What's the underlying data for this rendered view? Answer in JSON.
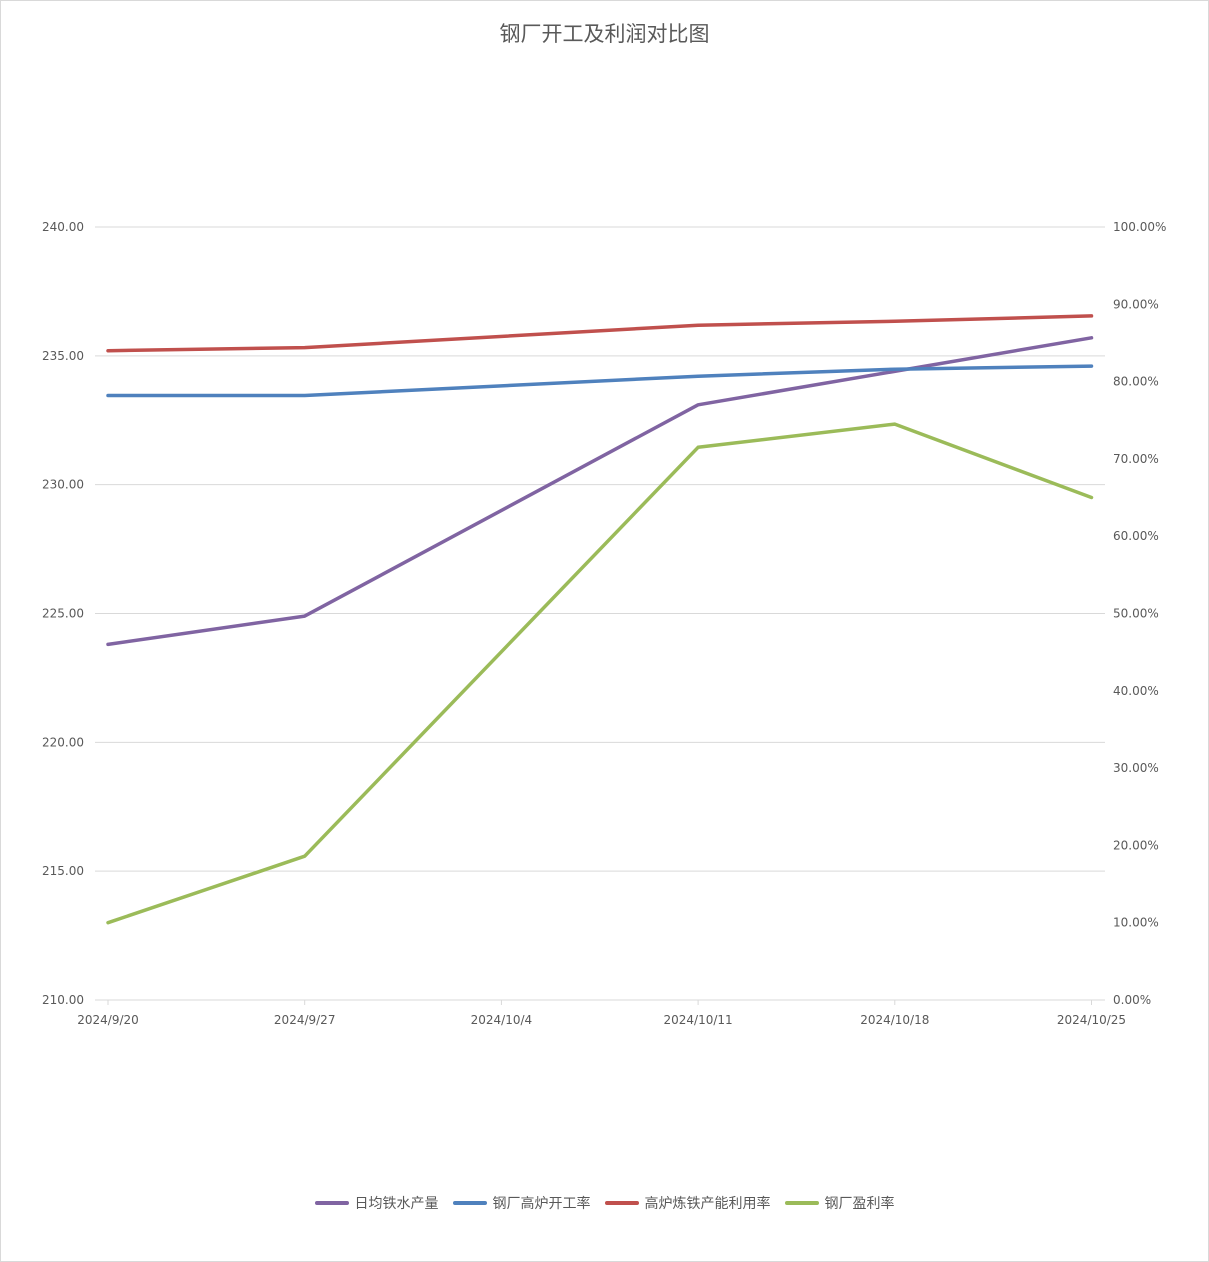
{
  "chart_data": {
    "type": "line",
    "title": "钢厂开工及利润对比图",
    "x": [
      "2024/9/20",
      "2024/9/27",
      "2024/10/4",
      "2024/10/11",
      "2024/10/18",
      "2024/10/25"
    ],
    "y_left": {
      "ylim": [
        210,
        240
      ],
      "ticks": [
        "210.00",
        "215.00",
        "220.00",
        "225.00",
        "230.00",
        "235.00",
        "240.00"
      ]
    },
    "y_right": {
      "ylim": [
        0,
        100
      ],
      "ticks": [
        "0.00%",
        "10.00%",
        "20.00%",
        "30.00%",
        "40.00%",
        "50.00%",
        "60.00%",
        "70.00%",
        "80.00%",
        "90.00%",
        "100.00%"
      ]
    },
    "grid": true,
    "legend_position": "bottom",
    "series": [
      {
        "name": "日均铁水产量",
        "axis": "left",
        "color": "#8064a2",
        "points": [
          [
            "2024/9/20",
            223.8
          ],
          [
            "2024/9/27",
            224.9
          ],
          [
            "2024/10/11",
            233.1
          ],
          [
            "2024/10/25",
            235.7
          ]
        ]
      },
      {
        "name": "钢厂高炉开工率",
        "axis": "right",
        "color": "#4f81bd",
        "points": [
          [
            "2024/9/20",
            78.2
          ],
          [
            "2024/9/27",
            78.2
          ],
          [
            "2024/10/11",
            80.7
          ],
          [
            "2024/10/18",
            81.6
          ],
          [
            "2024/10/25",
            82.0
          ]
        ]
      },
      {
        "name": "高炉炼铁产能利用率",
        "axis": "right",
        "color": "#c0504d",
        "points": [
          [
            "2024/9/20",
            84.0
          ],
          [
            "2024/9/27",
            84.4
          ],
          [
            "2024/10/11",
            87.3
          ],
          [
            "2024/10/18",
            87.8
          ],
          [
            "2024/10/25",
            88.5
          ]
        ]
      },
      {
        "name": "钢厂盈利率",
        "axis": "right",
        "color": "#9bbb59",
        "points": [
          [
            "2024/9/20",
            10.0
          ],
          [
            "2024/9/27",
            18.6
          ],
          [
            "2024/10/11",
            71.5
          ],
          [
            "2024/10/18",
            74.5
          ],
          [
            "2024/10/25",
            65.0
          ]
        ]
      }
    ]
  }
}
